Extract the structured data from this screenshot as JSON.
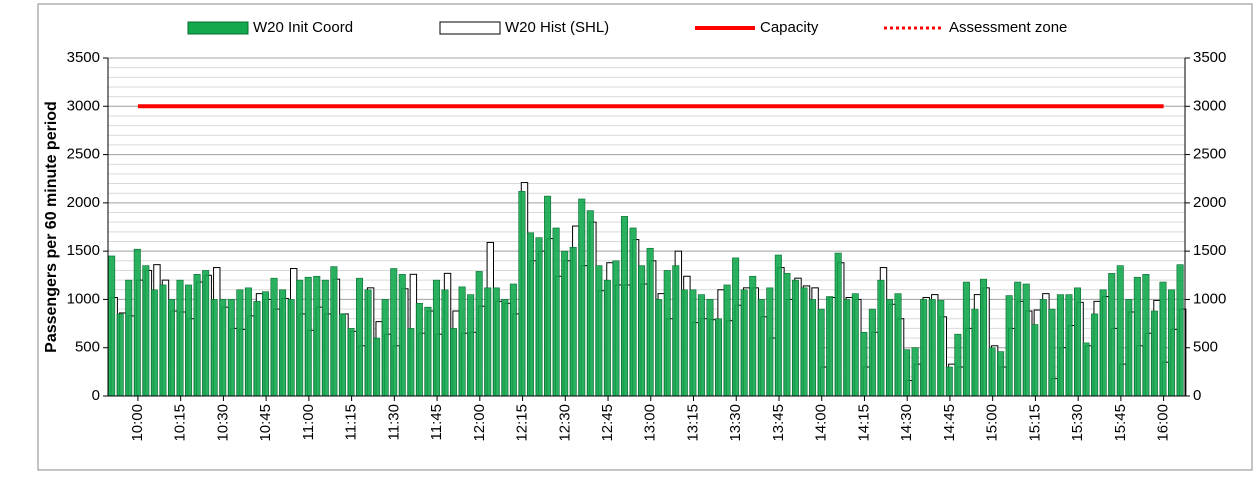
{
  "chart_data": {
    "type": "bar",
    "ylabel": "Passengers per 60 minute period",
    "categories": [
      null,
      null,
      null,
      "10:00",
      null,
      null,
      null,
      null,
      "10:15",
      null,
      null,
      null,
      null,
      "10:30",
      null,
      null,
      null,
      null,
      "10:45",
      null,
      null,
      null,
      null,
      "11:00",
      null,
      null,
      null,
      null,
      "11:15",
      null,
      null,
      null,
      null,
      "11:30",
      null,
      null,
      null,
      null,
      "11:45",
      null,
      null,
      null,
      null,
      "12:00",
      null,
      null,
      null,
      null,
      "12:15",
      null,
      null,
      null,
      null,
      "12:30",
      null,
      null,
      null,
      null,
      "12:45",
      null,
      null,
      null,
      null,
      "13:00",
      null,
      null,
      null,
      null,
      "13:15",
      null,
      null,
      null,
      null,
      "13:30",
      null,
      null,
      null,
      null,
      "13:45",
      null,
      null,
      null,
      null,
      "14:00",
      null,
      null,
      null,
      null,
      "14:15",
      null,
      null,
      null,
      null,
      "14:30",
      null,
      null,
      null,
      null,
      "14:45",
      null,
      null,
      null,
      null,
      "15:00",
      null,
      null,
      null,
      null,
      "15:15",
      null,
      null,
      null,
      null,
      "15:30",
      null,
      null,
      null,
      null,
      "15:45",
      null,
      null,
      null,
      null,
      "16:00",
      null,
      null
    ],
    "series": [
      {
        "name": "W20 Init Coord",
        "color": "#12a84e",
        "values": [
          1450,
          850,
          1200,
          1520,
          1350,
          1100,
          1150,
          1000,
          1200,
          1150,
          1260,
          1300,
          1000,
          1000,
          1000,
          1100,
          1120,
          980,
          1080,
          1220,
          1100,
          1000,
          1200,
          1230,
          1240,
          1200,
          1340,
          850,
          700,
          1220,
          1100,
          600,
          1000,
          1320,
          1260,
          700,
          960,
          920,
          1200,
          1100,
          700,
          1130,
          1050,
          1290,
          1120,
          1120,
          1000,
          1160,
          2120,
          1690,
          1640,
          2070,
          1740,
          1500,
          1540,
          2040,
          1920,
          1350,
          1200,
          1400,
          1860,
          1740,
          1350,
          1530,
          1000,
          1300,
          1350,
          1100,
          1100,
          1050,
          1000,
          800,
          1150,
          1430,
          1100,
          1240,
          1000,
          1120,
          1460,
          1270,
          1200,
          1120,
          1000,
          900,
          1030,
          1480,
          1000,
          1060,
          660,
          900,
          1200,
          1000,
          1060,
          480,
          500,
          1000,
          1000,
          990,
          300,
          640,
          1180,
          900,
          1210,
          500,
          460,
          1040,
          1180,
          1160,
          740,
          1000,
          900,
          1050,
          1050,
          1120,
          550,
          850,
          1100,
          1270,
          1350,
          1000,
          1230,
          1260,
          880,
          1180,
          1100,
          1360
        ]
      },
      {
        "name": "W20 Hist (SHL)",
        "color": "#ffffff",
        "values": [
          1020,
          860,
          830,
          1200,
          1300,
          1360,
          1200,
          880,
          870,
          800,
          1180,
          1250,
          1330,
          920,
          700,
          690,
          830,
          1060,
          1000,
          900,
          1010,
          1320,
          850,
          680,
          920,
          850,
          1210,
          850,
          670,
          520,
          1120,
          770,
          640,
          520,
          1110,
          1260,
          650,
          880,
          640,
          1270,
          880,
          650,
          660,
          930,
          1590,
          980,
          960,
          850,
          2210,
          1400,
          1500,
          1630,
          1240,
          1400,
          1760,
          1350,
          1800,
          1090,
          1380,
          1150,
          1150,
          1620,
          1160,
          1400,
          1060,
          800,
          1500,
          1240,
          760,
          800,
          790,
          1100,
          780,
          940,
          1120,
          1120,
          820,
          600,
          1330,
          1000,
          1220,
          1140,
          1120,
          300,
          1020,
          1380,
          1020,
          1000,
          300,
          660,
          1330,
          950,
          800,
          160,
          330,
          1020,
          1050,
          820,
          330,
          300,
          700,
          1050,
          1120,
          520,
          300,
          700,
          980,
          880,
          890,
          1060,
          180,
          500,
          730,
          970,
          520,
          980,
          1030,
          700,
          330,
          870,
          520,
          650,
          990,
          350,
          690,
          900
        ]
      }
    ],
    "capacity": {
      "name": "Capacity",
      "value": 3000,
      "color": "#ff0000"
    },
    "assessment_zone": {
      "name": "Assessment zone",
      "color": "#ff0000"
    },
    "ylim": [
      0,
      3500
    ],
    "yticks": [
      0,
      500,
      1000,
      1500,
      2000,
      2500,
      3000,
      3500
    ],
    "y2lim": [
      0,
      3500
    ],
    "y2ticks": [
      0,
      500,
      1000,
      1500,
      2000,
      2500,
      3000,
      3500
    ],
    "grid": true,
    "minor_grid_step": 100,
    "legend": "top"
  }
}
